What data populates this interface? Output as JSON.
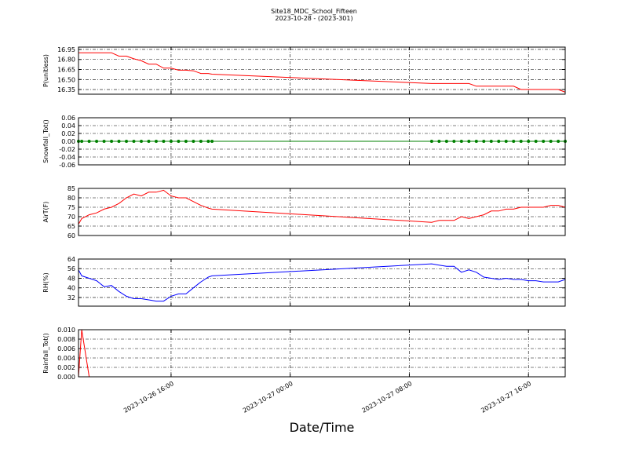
{
  "figure": {
    "title": "Site18_MDC_School_Fifteen",
    "subtitle": "2023-10-28 - (2023-301)",
    "xlabel": "Date/Time",
    "xlim": [
      "2023-10-26 09:47",
      "2023-10-27 18:28"
    ],
    "xticks": [
      "2023-10-26 16:00",
      "2023-10-27 00:00",
      "2023-10-27 08:00",
      "2023-10-27 16:00"
    ],
    "grid": true,
    "x": [
      "2023-10-26 09:47",
      "2023-10-26 10:00",
      "2023-10-26 10:30",
      "2023-10-26 11:00",
      "2023-10-26 11:30",
      "2023-10-26 12:00",
      "2023-10-26 12:30",
      "2023-10-26 13:00",
      "2023-10-26 13:30",
      "2023-10-26 14:00",
      "2023-10-26 14:30",
      "2023-10-26 15:00",
      "2023-10-26 15:30",
      "2023-10-26 16:00",
      "2023-10-26 16:30",
      "2023-10-26 17:00",
      "2023-10-26 17:30",
      "2023-10-26 18:00",
      "2023-10-26 18:30",
      "2023-10-26 18:45",
      "2023-10-27 09:30",
      "2023-10-27 10:00",
      "2023-10-27 10:30",
      "2023-10-27 11:00",
      "2023-10-27 11:30",
      "2023-10-27 12:00",
      "2023-10-27 12:30",
      "2023-10-27 13:00",
      "2023-10-27 13:30",
      "2023-10-27 14:00",
      "2023-10-27 14:30",
      "2023-10-27 15:00",
      "2023-10-27 15:30",
      "2023-10-27 16:00",
      "2023-10-27 16:30",
      "2023-10-27 17:00",
      "2023-10-27 17:30",
      "2023-10-27 18:00",
      "2023-10-27 18:28"
    ]
  },
  "chart_data": [
    {
      "type": "line",
      "ylabel": "P(unitless)",
      "ylim": [
        16.28,
        16.985
      ],
      "yticks": [
        16.35,
        {
          "value": 16.5,
          "label": "16.50"
        },
        16.65,
        {
          "value": 16.8,
          "label": "16.80"
        },
        16.95
      ],
      "series": [
        {
          "color": "#ff0000",
          "marker": false,
          "values": [
            16.9,
            16.9,
            16.9,
            16.9,
            16.9,
            16.9,
            16.85,
            16.85,
            16.81,
            16.78,
            16.73,
            16.73,
            16.67,
            16.67,
            16.64,
            16.64,
            16.63,
            16.59,
            16.59,
            16.58,
            16.44,
            16.44,
            16.44,
            16.44,
            16.44,
            16.44,
            16.4,
            16.4,
            16.4,
            16.4,
            16.4,
            16.4,
            16.35,
            16.35,
            16.35,
            16.35,
            16.35,
            16.35,
            16.31
          ]
        }
      ]
    },
    {
      "type": "line",
      "ylabel": "Snowfall_Tot()",
      "ylim": [
        -0.06,
        0.06
      ],
      "yticks": [
        {
          "value": -0.06,
          "label": "-0.06"
        },
        {
          "value": -0.04,
          "label": "-0.04"
        },
        {
          "value": -0.02,
          "label": "-0.02"
        },
        {
          "value": 0,
          "label": "0.00"
        },
        {
          "value": 0.02,
          "label": "0.02"
        },
        {
          "value": 0.04,
          "label": "0.04"
        },
        {
          "value": 0.06,
          "label": "0.06"
        }
      ],
      "series": [
        {
          "color": "#008000",
          "marker": true,
          "values": [
            0,
            0,
            0,
            0,
            0,
            0,
            0,
            0,
            0,
            0,
            0,
            0,
            0,
            0,
            0,
            0,
            0,
            0,
            0,
            0,
            0,
            0,
            0,
            0,
            0,
            0,
            0,
            0,
            0,
            0,
            0,
            0,
            0,
            0,
            0,
            0,
            0,
            0,
            0
          ]
        }
      ]
    },
    {
      "type": "line",
      "ylabel": "AirT(F)",
      "ylim": [
        60,
        85
      ],
      "yticks": [
        60,
        65,
        70,
        75,
        80,
        85
      ],
      "series": [
        {
          "color": "#ff0000",
          "marker": false,
          "values": [
            66,
            69,
            71,
            72,
            74,
            75,
            77,
            80,
            82,
            81,
            83,
            83,
            84,
            81,
            80,
            80,
            78,
            76,
            74.5,
            74,
            67,
            68,
            68,
            68,
            70,
            69,
            70,
            71,
            73,
            73,
            74,
            74,
            75,
            75,
            75,
            75,
            76,
            76,
            75
          ]
        }
      ]
    },
    {
      "type": "line",
      "ylabel": "RH(%)",
      "ylim": [
        24.8,
        64
      ],
      "yticks": [
        32,
        40,
        48,
        56,
        64
      ],
      "series": [
        {
          "color": "#0000ff",
          "marker": false,
          "values": [
            55,
            50,
            48,
            46,
            41,
            42,
            37,
            33,
            31,
            31,
            30,
            29,
            29,
            33,
            35,
            35,
            40,
            45,
            49,
            50,
            60,
            59,
            58,
            58,
            53,
            55,
            53,
            49,
            48,
            47,
            48,
            47,
            47,
            46,
            46,
            45,
            45,
            45,
            47
          ]
        }
      ]
    },
    {
      "type": "line",
      "ylabel": "Rainfall_Tot()",
      "ylim": [
        0,
        0.01
      ],
      "yticks": [
        {
          "value": 0,
          "label": "0.000"
        },
        {
          "value": 0.002,
          "label": "0.002"
        },
        {
          "value": 0.004,
          "label": "0.004"
        },
        {
          "value": 0.006,
          "label": "0.006"
        },
        {
          "value": 0.008,
          "label": "0.008"
        },
        {
          "value": 0.01,
          "label": "0.010"
        }
      ],
      "series": [
        {
          "color": "#ff0000",
          "marker": false,
          "values": [
            0,
            0.01,
            0,
            0,
            0,
            0,
            0,
            0,
            0,
            0,
            0,
            0,
            0,
            0,
            0,
            0,
            0,
            0,
            0,
            0,
            0,
            0,
            0,
            0,
            0,
            0,
            0,
            0,
            0,
            0,
            0,
            0,
            0,
            0,
            0,
            0,
            0,
            0,
            0
          ]
        }
      ]
    }
  ]
}
